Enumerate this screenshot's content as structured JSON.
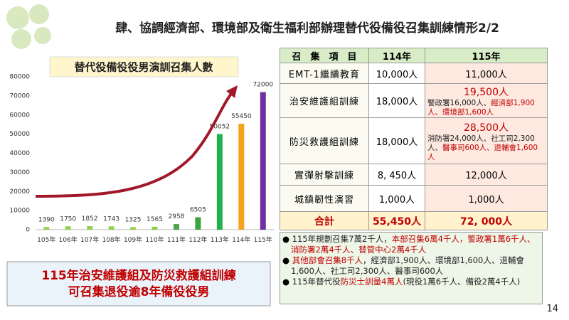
{
  "header": {
    "title": "肆、協調經濟部、環境部及衛生福利部辦理替代役備役召集訓練情形2/2"
  },
  "chart_data": {
    "type": "bar",
    "title": "替代役備役役男演訓召集人數",
    "categories": [
      "105年",
      "106年",
      "107年",
      "108年",
      "109年",
      "110年",
      "111年",
      "112年",
      "113年",
      "114年",
      "115年"
    ],
    "values": [
      1390,
      1750,
      1852,
      1743,
      1325,
      1565,
      2958,
      6505,
      50052,
      55450,
      72000
    ],
    "colors": [
      "#92d050",
      "#92d050",
      "#92d050",
      "#92d050",
      "#92d050",
      "#92d050",
      "#4ea24e",
      "#3aa53a",
      "#22b14c",
      "#f5a31a",
      "#7030a0"
    ],
    "ylim": [
      0,
      80000
    ],
    "yticks": [
      0,
      10000,
      20000,
      30000,
      40000,
      50000,
      60000,
      70000,
      80000
    ]
  },
  "callout": {
    "lines": [
      "115年治安維護組及防災救護組訓練",
      "可召集退役逾8年備役役男"
    ]
  },
  "table": {
    "header": [
      "召　集　項　目",
      "114年",
      "115年"
    ],
    "rows": [
      {
        "item": "EMT-1繼續教育",
        "y114": "10,000人",
        "y115": "11,000人"
      },
      {
        "item": "治安維護組訓練",
        "y114": "18,000人",
        "y115": "19,500人",
        "detail": [
          {
            "text": "警政署16,000人、",
            "color": "#222"
          },
          {
            "text": "經濟部",
            "color": "#c00000"
          },
          {
            "text": "1,900人、環境部1,600人",
            "color": "#c00000"
          }
        ]
      },
      {
        "item": "防災救護組訓練",
        "y114": "18,000人",
        "y115": "28,500人",
        "detail": [
          {
            "text": "消防署24,000人、社工司2,300人、",
            "color": "#222"
          },
          {
            "text": "醫事司600人、退輔會1,600人",
            "color": "#c00000"
          }
        ]
      },
      {
        "item": "實彈射擊訓練",
        "y114": "8, 450人",
        "y115": "12,000人"
      },
      {
        "item": "城鎮韌性演習",
        "y114": "1,000人",
        "y115": "1,000人"
      },
      {
        "item": "合計",
        "y114": "55,450人",
        "y115": "72, 000人"
      }
    ]
  },
  "notes": [
    [
      {
        "text": "115年規劃召集7萬2千人，",
        "color": "#222"
      },
      {
        "text": "本部召集6萬4千人，警政署1萬6千人、消防署2萬4千人、替管中心2萬4千人",
        "color": "#c00000"
      }
    ],
    [
      {
        "text": "其他部會召集8千人",
        "color": "#c00000"
      },
      {
        "text": "，經濟部1,900人、環境部1,600人、退輔會1,600人、社工司2,300人、醫事司600人",
        "color": "#222"
      }
    ],
    [
      {
        "text": "115年替代役",
        "color": "#222"
      },
      {
        "text": "防災士訓量4萬人",
        "color": "#c00000"
      },
      {
        "text": "(現役1萬6千人、備役2萬4千人)",
        "color": "#222"
      }
    ]
  ],
  "page_number": "14"
}
